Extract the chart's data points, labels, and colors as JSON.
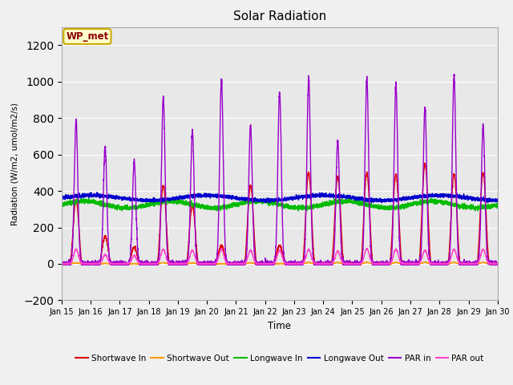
{
  "title": "Solar Radiation",
  "xlabel": "Time",
  "ylabel": "Radiation (W/m2, umol/m2/s)",
  "ylim": [
    -200,
    1300
  ],
  "yticks": [
    -200,
    0,
    200,
    400,
    600,
    800,
    1000,
    1200
  ],
  "x_tick_labels": [
    "Jan 15",
    "Jan 16",
    "Jan 17",
    "Jan 18",
    "Jan 19",
    "Jan 20",
    "Jan 21",
    "Jan 22",
    "Jan 23",
    "Jan 24",
    "Jan 25",
    "Jan 26",
    "Jan 27",
    "Jan 28",
    "Jan 29",
    "Jan 30"
  ],
  "annotation_label": "WP_met",
  "fig_bg": "#f0f0f0",
  "ax_bg": "#e8e8e8",
  "legend_entries": [
    {
      "label": "Shortwave In",
      "color": "#dd0000",
      "lw": 1.0
    },
    {
      "label": "Shortwave Out",
      "color": "#ff9900",
      "lw": 1.0
    },
    {
      "label": "Longwave In",
      "color": "#00bb00",
      "lw": 1.0
    },
    {
      "label": "Longwave Out",
      "color": "#0000cc",
      "lw": 1.0
    },
    {
      "label": "PAR in",
      "color": "#9900cc",
      "lw": 1.0
    },
    {
      "label": "PAR out",
      "color": "#ff44cc",
      "lw": 1.0
    }
  ],
  "sw_in_peaks": [
    350,
    150,
    90,
    430,
    320,
    100,
    430,
    100,
    500,
    480,
    500,
    490,
    550,
    490,
    500
  ],
  "par_in_peaks": [
    790,
    640,
    560,
    920,
    730,
    1010,
    760,
    940,
    1020,
    680,
    1025,
    990,
    860,
    1035,
    760
  ],
  "par_out_peaks": [
    80,
    50,
    45,
    80,
    75,
    80,
    75,
    75,
    80,
    70,
    85,
    80,
    75,
    80,
    80
  ]
}
